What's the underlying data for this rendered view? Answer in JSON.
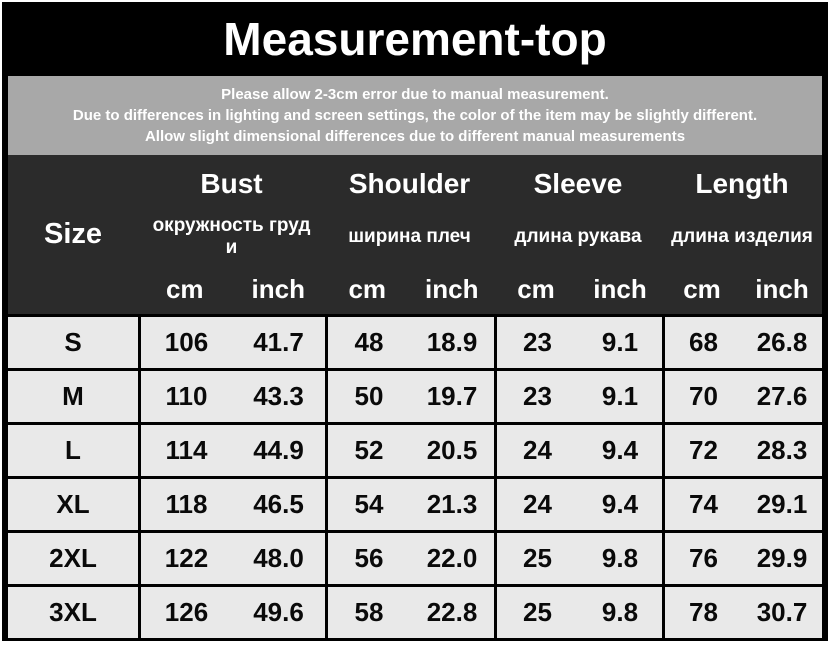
{
  "title": "Measurement-top",
  "disclaimer": {
    "lines": [
      "Please allow 2-3cm error due to manual measurement.",
      "Due to differences in lighting and screen settings, the color of the item may be slightly different.",
      "Allow slight dimensional differences due to different manual measurements"
    ]
  },
  "table": {
    "size_header": "Size",
    "groups": [
      {
        "label": "Bust",
        "subtitle": "окружность груд\nи",
        "unit_cm": "cm",
        "unit_inch": "inch"
      },
      {
        "label": "Shoulder",
        "subtitle": "ширина плеч",
        "unit_cm": "cm",
        "unit_inch": "inch"
      },
      {
        "label": "Sleeve",
        "subtitle": "длина рукава",
        "unit_cm": "cm",
        "unit_inch": "inch"
      },
      {
        "label": "Length",
        "subtitle": "длина изделия",
        "unit_cm": "cm",
        "unit_inch": "inch"
      }
    ],
    "rows": [
      {
        "size": "S",
        "values": [
          "106",
          "41.7",
          "48",
          "18.9",
          "23",
          "9.1",
          "68",
          "26.8"
        ]
      },
      {
        "size": "M",
        "values": [
          "110",
          "43.3",
          "50",
          "19.7",
          "23",
          "9.1",
          "70",
          "27.6"
        ]
      },
      {
        "size": "L",
        "values": [
          "114",
          "44.9",
          "52",
          "20.5",
          "24",
          "9.4",
          "72",
          "28.3"
        ]
      },
      {
        "size": "XL",
        "values": [
          "118",
          "46.5",
          "54",
          "21.3",
          "24",
          "9.4",
          "74",
          "29.1"
        ]
      },
      {
        "size": "2XL",
        "values": [
          "122",
          "48.0",
          "56",
          "22.0",
          "25",
          "9.8",
          "76",
          "29.9"
        ]
      },
      {
        "size": "3XL",
        "values": [
          "126",
          "49.6",
          "58",
          "22.8",
          "25",
          "9.8",
          "78",
          "30.7"
        ]
      }
    ]
  },
  "colors": {
    "banner_bg": "#000000",
    "disclaimer_bg": "#a8a8a8",
    "header_bg": "#2b2b2b",
    "cell_bg": "#e9e9e9",
    "text_light": "#ffffff",
    "text_dark": "#0a0a0a"
  },
  "chart_data": {
    "type": "table",
    "title": "Measurement-top",
    "columns": [
      "Size",
      "Bust cm",
      "Bust inch",
      "Shoulder cm",
      "Shoulder inch",
      "Sleeve cm",
      "Sleeve inch",
      "Length cm",
      "Length inch"
    ],
    "column_subtitles_ru": {
      "Bust": "окружность груди",
      "Shoulder": "ширина плеч",
      "Sleeve": "длина рукава",
      "Length": "длина изделия"
    },
    "rows": [
      [
        "S",
        106,
        41.7,
        48,
        18.9,
        23,
        9.1,
        68,
        26.8
      ],
      [
        "M",
        110,
        43.3,
        50,
        19.7,
        23,
        9.1,
        70,
        27.6
      ],
      [
        "L",
        114,
        44.9,
        52,
        20.5,
        24,
        9.4,
        72,
        28.3
      ],
      [
        "XL",
        118,
        46.5,
        54,
        21.3,
        24,
        9.4,
        74,
        29.1
      ],
      [
        "2XL",
        122,
        48.0,
        56,
        22.0,
        25,
        9.8,
        76,
        29.9
      ],
      [
        "3XL",
        126,
        49.6,
        58,
        22.8,
        25,
        9.8,
        78,
        30.7
      ]
    ]
  }
}
